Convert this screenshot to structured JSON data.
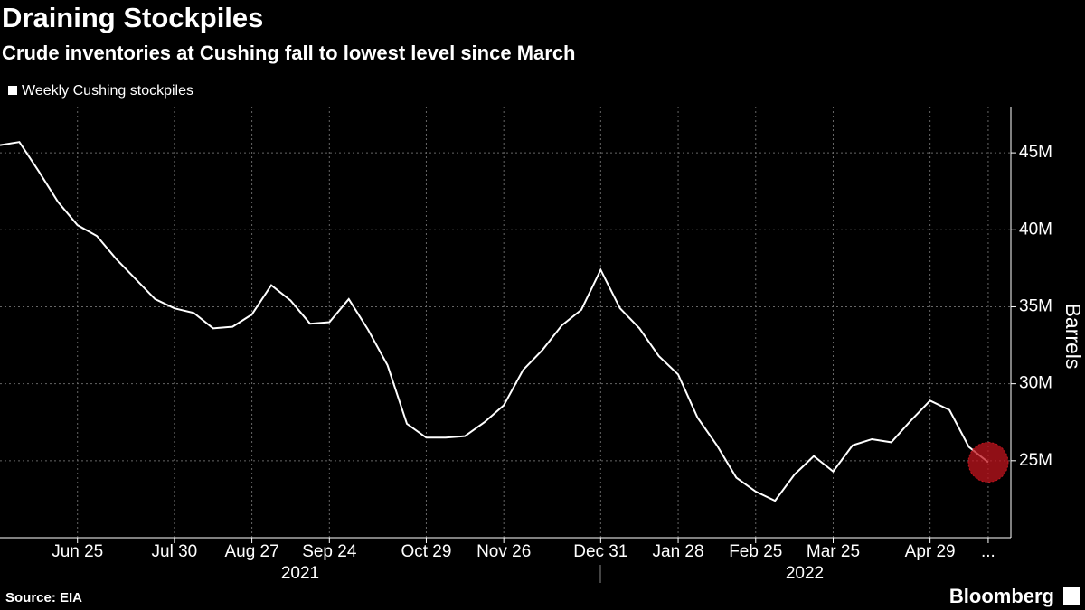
{
  "chart_data": {
    "type": "line",
    "title": "Draining Stockpiles",
    "subtitle": "Crude inventories at Cushing fall to lowest level since March",
    "y_label": "Barrels",
    "source": "Source: EIA",
    "brand": "Bloomberg",
    "year_labels": [
      "2021",
      "2022"
    ],
    "categories": [
      null,
      null,
      null,
      null,
      "Jun 25",
      null,
      null,
      null,
      null,
      "Jul 30",
      null,
      null,
      null,
      "Aug 27",
      null,
      null,
      null,
      "Sep 24",
      null,
      null,
      null,
      null,
      "Oct 29",
      null,
      null,
      null,
      "Nov 26",
      null,
      null,
      null,
      null,
      "Dec 31",
      null,
      null,
      null,
      "Jan 28",
      null,
      null,
      null,
      "Feb 25",
      null,
      null,
      null,
      "Mar 25",
      null,
      null,
      null,
      null,
      "Apr 29",
      null,
      null,
      "..."
    ],
    "series": [
      {
        "name": "Weekly Cushing stockpiles",
        "color": "#ffffff",
        "values": [
          45.5,
          45.7,
          43.8,
          41.8,
          40.3,
          39.6,
          38.1,
          36.8,
          35.5,
          34.9,
          34.6,
          33.6,
          33.7,
          34.5,
          36.4,
          35.4,
          33.9,
          34.0,
          35.5,
          33.5,
          31.2,
          27.4,
          26.5,
          26.5,
          26.6,
          27.5,
          28.6,
          30.9,
          32.2,
          33.8,
          34.8,
          37.4,
          34.9,
          33.6,
          31.8,
          30.6,
          27.8,
          26.0,
          23.9,
          23.0,
          22.4,
          24.1,
          25.3,
          24.3,
          26.0,
          26.4,
          26.2,
          27.6,
          28.9,
          28.3,
          25.9,
          24.9
        ]
      }
    ],
    "ylim": [
      20,
      48
    ],
    "yticks": [
      {
        "value": 25,
        "label": "25M"
      },
      {
        "value": 30,
        "label": "30M"
      },
      {
        "value": 35,
        "label": "35M"
      },
      {
        "value": 40,
        "label": "40M"
      },
      {
        "value": 45,
        "label": "45M"
      }
    ],
    "grid": true,
    "highlight_last": true,
    "highlight_color": "#c0141e"
  }
}
